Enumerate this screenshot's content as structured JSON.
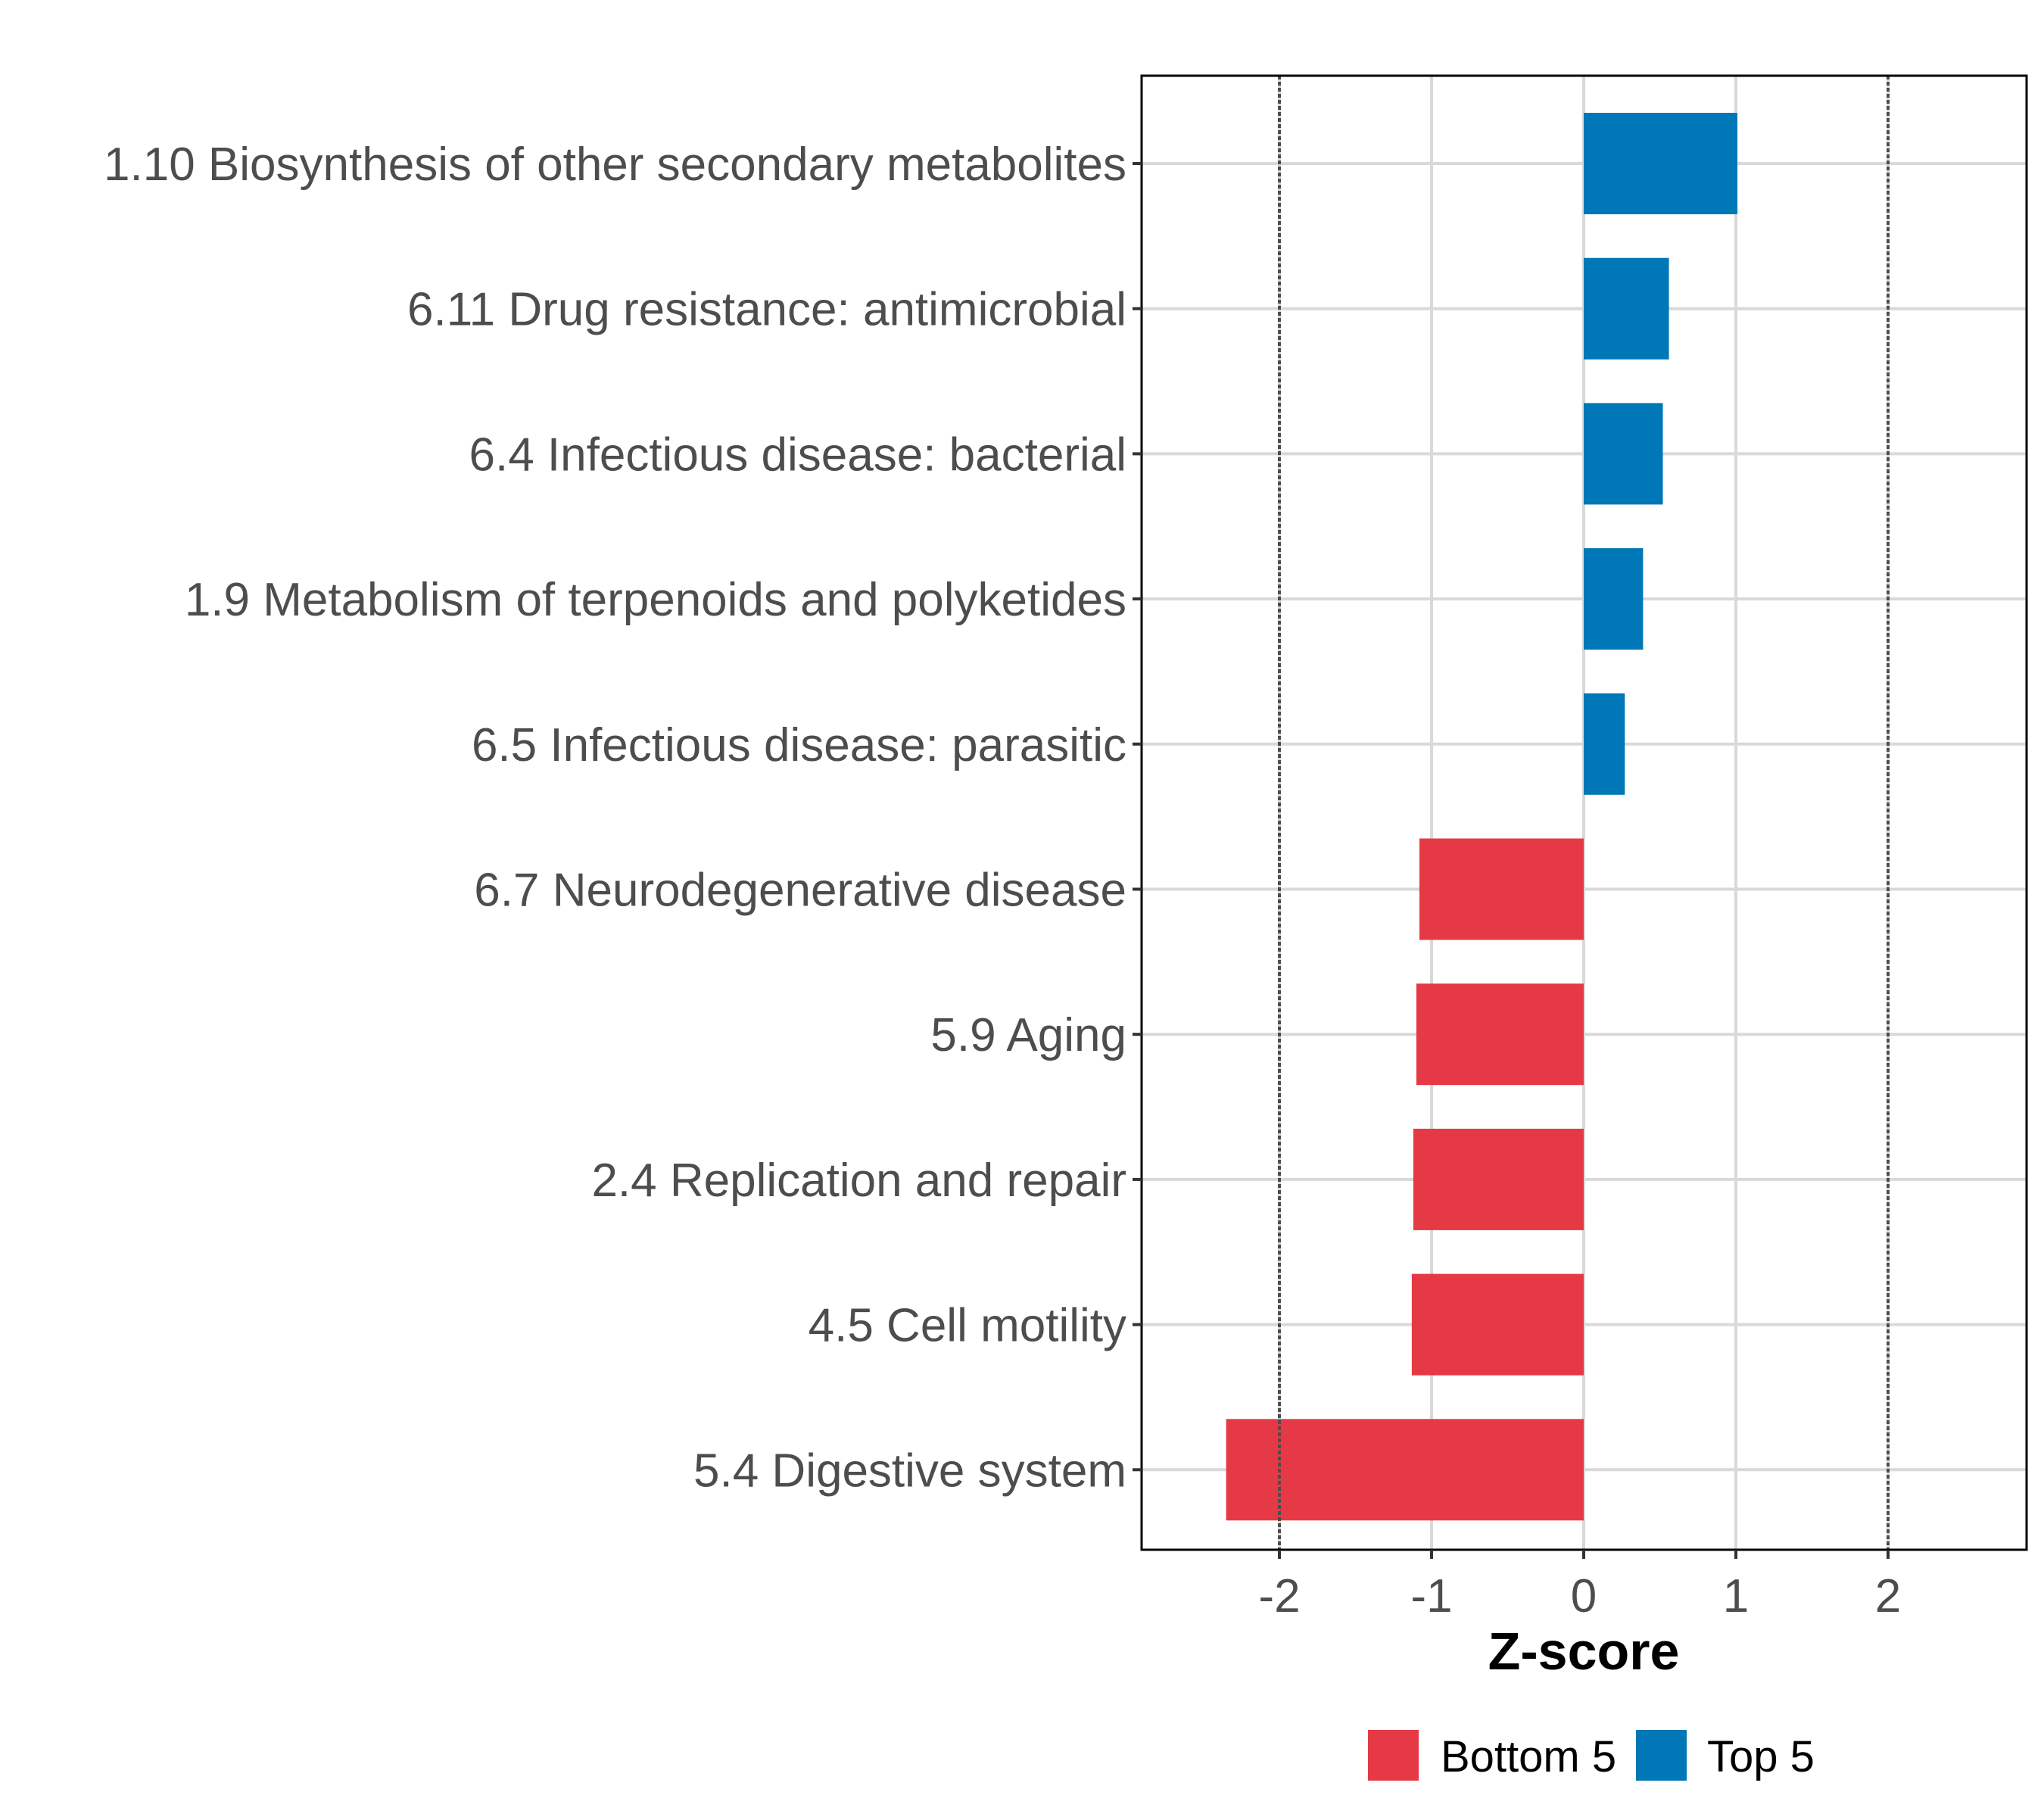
{
  "chart_data": {
    "type": "bar",
    "orientation": "horizontal",
    "title": "",
    "xlabel": "Z-score",
    "ylabel": "",
    "xlim": [
      -2.91,
      2.91
    ],
    "xticks": [
      -2,
      -1,
      0,
      1,
      2
    ],
    "xtick_labels": [
      "-2",
      "-1",
      "0",
      "1",
      "2"
    ],
    "grid": true,
    "reference_lines": [
      {
        "x": -2,
        "style": "dotted"
      },
      {
        "x": 2,
        "style": "dotted"
      }
    ],
    "categories": [
      "1.10 Biosynthesis of other secondary metabolites",
      "6.11 Drug resistance: antimicrobial",
      "6.4 Infectious disease: bacterial",
      "1.9 Metabolism of terpenoids and polyketides",
      "6.5 Infectious disease: parasitic",
      "6.7 Neurodegenerative disease",
      "5.9 Aging",
      "2.4 Replication and repair",
      "4.5 Cell motility",
      "5.4 Digestive system"
    ],
    "values": [
      1.01,
      0.56,
      0.52,
      0.39,
      0.27,
      -1.08,
      -1.1,
      -1.12,
      -1.13,
      -2.35
    ],
    "groups": [
      "Top 5",
      "Top 5",
      "Top 5",
      "Top 5",
      "Top 5",
      "Bottom 5",
      "Bottom 5",
      "Bottom 5",
      "Bottom 5",
      "Bottom 5"
    ],
    "legend": {
      "position": "bottom",
      "entries": [
        {
          "label": "Bottom 5",
          "color": "#e63946"
        },
        {
          "label": "Top 5",
          "color": "#0077b6"
        }
      ]
    },
    "colors": {
      "Bottom 5": "#e63946",
      "Top 5": "#0077b6",
      "grid": "#d9d9d9",
      "axis_text": "#4d4d4d",
      "refline": "#4d4d4d"
    }
  }
}
